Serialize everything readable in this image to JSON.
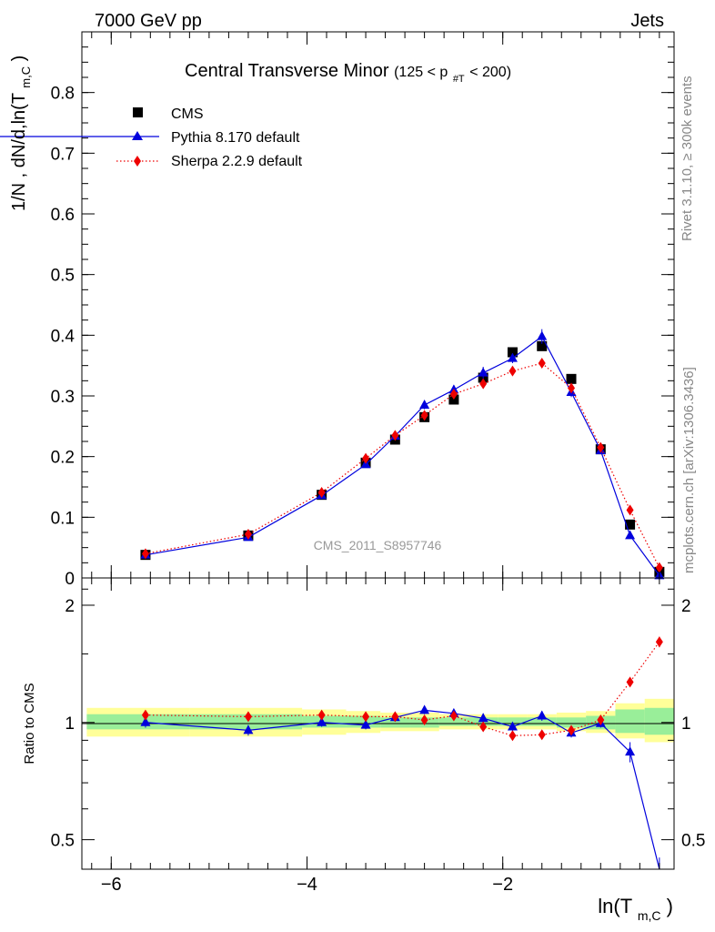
{
  "header": {
    "left": "7000 GeV pp",
    "right": "Jets"
  },
  "side_text": {
    "top": "Rivet 3.1.10, ≥ 300k events",
    "bottom": "mcplots.cern.ch [arXiv:1306.3436]"
  },
  "watermark": "CMS_2011_S8957746",
  "chart_data": [
    {
      "type": "line",
      "title": "Central Transverse Minor",
      "title_cut": "(125 < p",
      "title_cut_sub": "#T",
      "title_cut_end": " < 200)",
      "ylabel": "1/N , dN/d,ln(T",
      "ylabel_sub": "m,C",
      "ylabel_end": ")",
      "xlim": [
        -6.3,
        -0.25
      ],
      "ylim": [
        0,
        0.9
      ],
      "yticks": [
        0,
        0.1,
        0.2,
        0.3,
        0.4,
        0.5,
        0.6,
        0.7,
        0.8
      ],
      "ytick_labels": [
        "0",
        "0.1",
        "0.2",
        "0.3",
        "0.4",
        "0.5",
        "0.6",
        "0.7",
        "0.8"
      ],
      "legend_position": "top-left",
      "x": [
        -5.65,
        -4.6,
        -3.85,
        -3.4,
        -3.1,
        -2.8,
        -2.5,
        -2.2,
        -1.9,
        -1.6,
        -1.3,
        -1.0,
        -0.7,
        -0.4
      ],
      "series": [
        {
          "name": "CMS",
          "color": "#000000",
          "marker": "square",
          "values": [
            0.038,
            0.07,
            0.137,
            0.19,
            0.228,
            0.265,
            0.294,
            0.33,
            0.372,
            0.382,
            0.328,
            0.212,
            0.088,
            0.01
          ]
        },
        {
          "name": "Pythia 8.170 default",
          "color": "#0000dd",
          "marker": "triangle",
          "line": "solid",
          "values": [
            0.038,
            0.067,
            0.136,
            0.187,
            0.234,
            0.285,
            0.31,
            0.338,
            0.362,
            0.398,
            0.306,
            0.21,
            0.07,
            0.004
          ],
          "errors": [
            0.001,
            0.002,
            0.003,
            0.005,
            0.006,
            0.007,
            0.008,
            0.01,
            0.008,
            0.012,
            0.008,
            0.006,
            0.004,
            0.002
          ]
        },
        {
          "name": "Sherpa 2.2.9 default",
          "color": "#ee0000",
          "marker": "diamond",
          "line": "dotted",
          "values": [
            0.04,
            0.072,
            0.141,
            0.197,
            0.235,
            0.268,
            0.303,
            0.32,
            0.341,
            0.354,
            0.313,
            0.215,
            0.112,
            0.017
          ],
          "errors": [
            0.001,
            0.002,
            0.003,
            0.004,
            0.005,
            0.006,
            0.006,
            0.006,
            0.006,
            0.006,
            0.006,
            0.005,
            0.004,
            0.002
          ]
        }
      ]
    },
    {
      "type": "line",
      "ylabel": "Ratio to CMS",
      "xlabel": "ln(T",
      "xlabel_sub": "m,C",
      "xlabel_end": ")",
      "xlim": [
        -6.3,
        -0.25
      ],
      "ylim": [
        0.42,
        2.35
      ],
      "y_scale": "log",
      "yticks": [
        0.5,
        1,
        2
      ],
      "ytick_labels": [
        "0.5",
        "1",
        "2"
      ],
      "xticks": [
        -6,
        -4,
        -2
      ],
      "xtick_labels": [
        "−6",
        "−4",
        "−2"
      ],
      "bands": {
        "x_edges": [
          -6.25,
          -5.2,
          -4.05,
          -3.6,
          -3.25,
          -2.95,
          -2.65,
          -2.35,
          -2.05,
          -1.75,
          -1.45,
          -1.15,
          -0.85,
          -0.55,
          -0.25
        ],
        "yellow": [
          [
            0.92,
            1.09
          ],
          [
            0.92,
            1.09
          ],
          [
            0.93,
            1.08
          ],
          [
            0.94,
            1.07
          ],
          [
            0.95,
            1.06
          ],
          [
            0.95,
            1.06
          ],
          [
            0.96,
            1.05
          ],
          [
            0.96,
            1.05
          ],
          [
            0.96,
            1.05
          ],
          [
            0.96,
            1.05
          ],
          [
            0.95,
            1.06
          ],
          [
            0.94,
            1.07
          ],
          [
            0.91,
            1.12
          ],
          [
            0.89,
            1.15
          ]
        ],
        "green": [
          [
            0.96,
            1.05
          ],
          [
            0.96,
            1.05
          ],
          [
            0.97,
            1.04
          ],
          [
            0.97,
            1.04
          ],
          [
            0.97,
            1.03
          ],
          [
            0.97,
            1.03
          ],
          [
            0.98,
            1.03
          ],
          [
            0.98,
            1.03
          ],
          [
            0.98,
            1.03
          ],
          [
            0.98,
            1.03
          ],
          [
            0.97,
            1.03
          ],
          [
            0.96,
            1.04
          ],
          [
            0.94,
            1.08
          ],
          [
            0.93,
            1.09
          ]
        ],
        "yellow_color": "#ffff99",
        "green_color": "#99ee99"
      },
      "series": [
        {
          "name": "Pythia 8.170 default",
          "color": "#0000dd",
          "values": [
            1.0,
            0.955,
            1.0,
            0.985,
            1.03,
            1.075,
            1.055,
            1.025,
            0.975,
            1.04,
            0.94,
            0.995,
            0.84,
            0.4
          ],
          "errors": [
            0.03,
            0.03,
            0.025,
            0.025,
            0.025,
            0.025,
            0.025,
            0.03,
            0.025,
            0.03,
            0.025,
            0.025,
            0.05,
            0.05
          ]
        },
        {
          "name": "Sherpa 2.2.9 default",
          "color": "#ee0000",
          "values": [
            1.045,
            1.035,
            1.045,
            1.035,
            1.035,
            1.015,
            1.04,
            0.975,
            0.925,
            0.93,
            0.955,
            1.015,
            1.27,
            1.61
          ],
          "errors": [
            0.01,
            0.01,
            0.01,
            0.01,
            0.01,
            0.01,
            0.01,
            0.01,
            0.01,
            0.015,
            0.015,
            0.015,
            0.02,
            0.05
          ]
        }
      ]
    }
  ]
}
